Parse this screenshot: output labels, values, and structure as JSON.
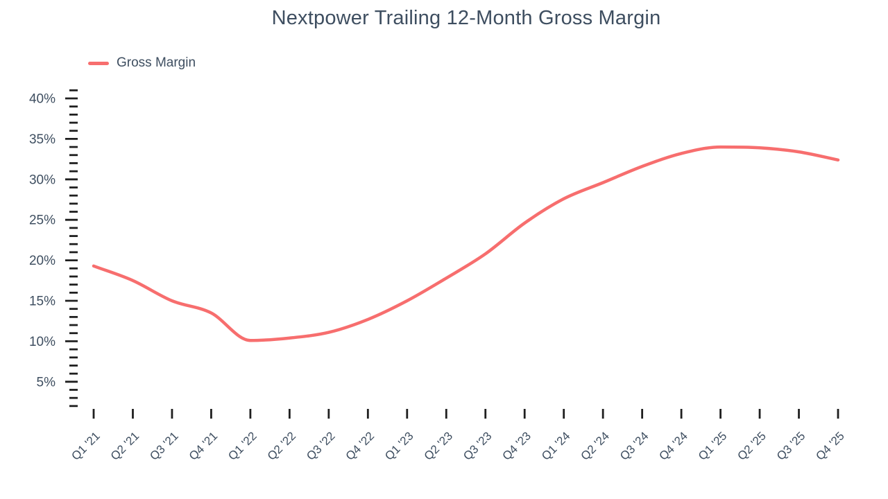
{
  "title": "Nextpower Trailing 12-Month Gross Margin",
  "legend": {
    "position": "top-left",
    "items": [
      {
        "label": "Gross Margin",
        "swatch": "line",
        "color": "#f76e6e"
      }
    ]
  },
  "colors": {
    "line": "#f76e6e",
    "text": "#3e4e60",
    "tick": "#1f1f1f",
    "background": "#ffffff"
  },
  "chart_data": {
    "type": "line",
    "title": "Nextpower Trailing 12-Month Gross Margin",
    "categories": [
      "Q1 '21",
      "Q2 '21",
      "Q3 '21",
      "Q4 '21",
      "Q1 '22",
      "Q2 '22",
      "Q3 '22",
      "Q4 '22",
      "Q1 '23",
      "Q2 '23",
      "Q3 '23",
      "Q4 '23",
      "Q1 '24",
      "Q2 '24",
      "Q3 '24",
      "Q4 '24",
      "Q1 '25",
      "Q2 '25",
      "Q3 '25",
      "Q4 '25"
    ],
    "series": [
      {
        "name": "Gross Margin",
        "color": "#f76e6e",
        "values": [
          19.3,
          17.5,
          15.0,
          13.5,
          10.1,
          10.4,
          11.1,
          12.7,
          15.0,
          17.8,
          20.8,
          24.6,
          27.6,
          29.6,
          31.6,
          33.2,
          34.0,
          33.9,
          33.4,
          32.4
        ]
      }
    ],
    "xlabel": "",
    "ylabel": "",
    "y_axis": {
      "unit": "%",
      "major_ticks": [
        5,
        10,
        15,
        20,
        25,
        30,
        35,
        40
      ],
      "minor_tick_step": 1,
      "minor_tick_min": 2,
      "minor_tick_max": 41,
      "range": [
        0,
        42
      ]
    },
    "grid": false,
    "legend_position": "top-left",
    "curve": "monotone"
  }
}
